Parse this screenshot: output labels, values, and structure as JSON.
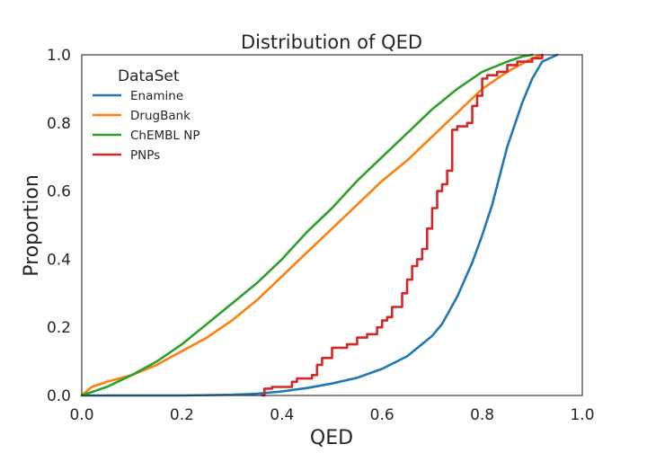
{
  "chart_data": {
    "type": "line",
    "title": "Distribution of QED",
    "xlabel": "QED",
    "ylabel": "Proportion",
    "xlim": [
      0.0,
      1.0
    ],
    "ylim": [
      0.0,
      1.0
    ],
    "xticks": [
      "0.0",
      "0.2",
      "0.4",
      "0.6",
      "0.8",
      "1.0"
    ],
    "yticks": [
      "0.0",
      "0.2",
      "0.4",
      "0.6",
      "0.8",
      "1.0"
    ],
    "grid": false,
    "legend": {
      "title": "DataSet",
      "position": "top-left"
    },
    "series": [
      {
        "name": "Enamine",
        "color": "#1f77b4",
        "step": false,
        "x": [
          0.0,
          0.2,
          0.3,
          0.35,
          0.4,
          0.45,
          0.5,
          0.55,
          0.6,
          0.65,
          0.7,
          0.72,
          0.75,
          0.78,
          0.8,
          0.82,
          0.85,
          0.88,
          0.9,
          0.92,
          0.95
        ],
        "y": [
          0.0,
          0.0,
          0.002,
          0.005,
          0.012,
          0.022,
          0.035,
          0.052,
          0.078,
          0.115,
          0.175,
          0.21,
          0.29,
          0.39,
          0.47,
          0.56,
          0.73,
          0.86,
          0.93,
          0.98,
          1.0
        ]
      },
      {
        "name": "DrugBank",
        "color": "#ff7f0e",
        "step": false,
        "x": [
          0.0,
          0.02,
          0.05,
          0.1,
          0.15,
          0.2,
          0.25,
          0.3,
          0.35,
          0.4,
          0.45,
          0.5,
          0.55,
          0.6,
          0.65,
          0.7,
          0.75,
          0.8,
          0.85,
          0.9,
          0.92
        ],
        "y": [
          0.0,
          0.025,
          0.04,
          0.06,
          0.09,
          0.13,
          0.17,
          0.22,
          0.28,
          0.35,
          0.42,
          0.49,
          0.56,
          0.63,
          0.69,
          0.76,
          0.83,
          0.9,
          0.95,
          0.99,
          1.0
        ]
      },
      {
        "name": "ChEMBL NP",
        "color": "#2ca02c",
        "step": false,
        "x": [
          0.0,
          0.05,
          0.1,
          0.15,
          0.2,
          0.25,
          0.3,
          0.35,
          0.4,
          0.45,
          0.5,
          0.55,
          0.6,
          0.65,
          0.7,
          0.75,
          0.8,
          0.85,
          0.88,
          0.9
        ],
        "y": [
          0.0,
          0.025,
          0.06,
          0.1,
          0.15,
          0.21,
          0.27,
          0.33,
          0.4,
          0.48,
          0.55,
          0.63,
          0.7,
          0.77,
          0.84,
          0.9,
          0.95,
          0.98,
          0.995,
          1.0
        ]
      },
      {
        "name": "PNPs",
        "color": "#d62728",
        "step": true,
        "x": [
          0.36,
          0.365,
          0.38,
          0.42,
          0.43,
          0.46,
          0.47,
          0.48,
          0.5,
          0.53,
          0.55,
          0.57,
          0.59,
          0.6,
          0.61,
          0.62,
          0.64,
          0.65,
          0.66,
          0.67,
          0.68,
          0.69,
          0.7,
          0.71,
          0.72,
          0.73,
          0.74,
          0.75,
          0.77,
          0.78,
          0.79,
          0.8,
          0.81,
          0.83,
          0.85,
          0.87,
          0.9,
          0.92
        ],
        "y": [
          0.0,
          0.02,
          0.025,
          0.04,
          0.05,
          0.06,
          0.09,
          0.11,
          0.14,
          0.15,
          0.17,
          0.18,
          0.2,
          0.22,
          0.23,
          0.26,
          0.3,
          0.34,
          0.38,
          0.4,
          0.43,
          0.49,
          0.55,
          0.6,
          0.62,
          0.66,
          0.78,
          0.79,
          0.8,
          0.85,
          0.88,
          0.93,
          0.94,
          0.95,
          0.97,
          0.98,
          0.99,
          1.0
        ]
      }
    ]
  }
}
